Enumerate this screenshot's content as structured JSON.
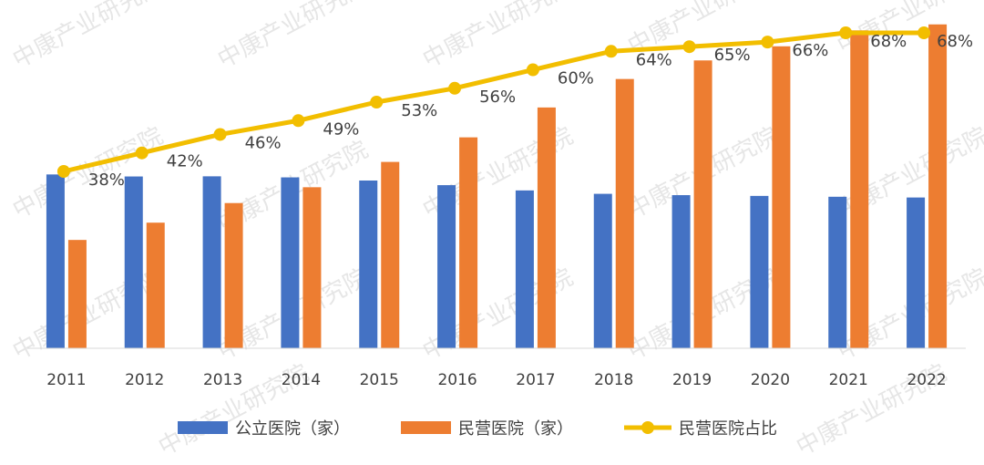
{
  "chart_data": {
    "type": "bar",
    "categories": [
      "2011",
      "2012",
      "2013",
      "2014",
      "2015",
      "2016",
      "2017",
      "2018",
      "2019",
      "2020",
      "2021",
      "2022"
    ],
    "series": [
      {
        "name": "公立医院（家）",
        "type": "bar",
        "values": [
          13542,
          13384,
          13396,
          13314,
          13069,
          12708,
          12297,
          12032,
          11930,
          11870,
          11804,
          11746
        ]
      },
      {
        "name": "民营医院（家）",
        "type": "bar",
        "values": [
          8440,
          9786,
          11313,
          12546,
          14518,
          16432,
          18759,
          20977,
          22424,
          23524,
          24766,
          25230
        ]
      },
      {
        "name": "民营医院占比",
        "type": "line",
        "values": [
          38,
          42,
          46,
          49,
          53,
          56,
          60,
          64,
          65,
          66,
          68,
          68
        ],
        "labels": [
          "38%",
          "42%",
          "46%",
          "49%",
          "53%",
          "56%",
          "60%",
          "64%",
          "65%",
          "66%",
          "68%",
          "68%"
        ]
      }
    ],
    "ylim": [
      0,
      25000
    ],
    "line_ylim": [
      0,
      100
    ],
    "legend": "bottom",
    "grid": false
  },
  "colors": {
    "public": "#4472c4",
    "private": "#ed7d31",
    "ratio": "#f2be00",
    "axis": "#d9d9d9",
    "text": "#404040"
  },
  "watermark": "中康产业研究院"
}
